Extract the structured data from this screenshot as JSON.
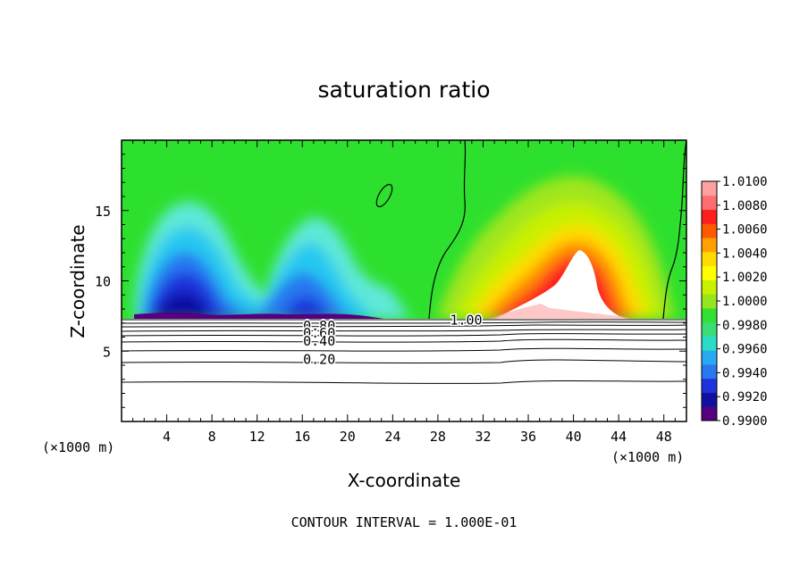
{
  "chart_data": {
    "type": "heatmap",
    "title": "saturation ratio",
    "xlabel": "X-coordinate",
    "ylabel": "Z-coordinate",
    "x_unit_label": "(×1000 m)",
    "xlim": [
      0,
      50
    ],
    "ylim": [
      0,
      20
    ],
    "x_ticks": [
      4,
      8,
      12,
      16,
      20,
      24,
      28,
      32,
      36,
      40,
      44,
      48
    ],
    "y_ticks": [
      5,
      10,
      15
    ],
    "colorbar": {
      "min": 0.99,
      "max": 1.01,
      "labels": [
        "1.0100",
        "1.0080",
        "1.0060",
        "1.0040",
        "1.0020",
        "1.0000",
        "0.9980",
        "0.9960",
        "0.9940",
        "0.9920",
        "0.9900"
      ],
      "colors": [
        "#550080",
        "#1010a0",
        "#1e32dc",
        "#2878f0",
        "#28aaf0",
        "#28dcc8",
        "#3cdc78",
        "#32e132",
        "#96e61e",
        "#c8f000",
        "#ffff00",
        "#ffdc00",
        "#ffa000",
        "#ff5a00",
        "#ff1e1e",
        "#ff6e6e",
        "#ffa0a0"
      ]
    },
    "contour_labels": [
      {
        "text": "1.00",
        "x": 30.5,
        "y": 7.2
      },
      {
        "text": "0.80",
        "x": 17.5,
        "y": 6.8
      },
      {
        "text": "0.60",
        "x": 17.5,
        "y": 6.3
      },
      {
        "text": "0.40",
        "x": 17.5,
        "y": 5.7
      },
      {
        "text": "0.20",
        "x": 17.5,
        "y": 4.4
      }
    ],
    "footnote": "CONTOUR INTERVAL = 1.000E-01"
  },
  "colors": {
    "background": "#ffffff",
    "axis": "#000000"
  }
}
